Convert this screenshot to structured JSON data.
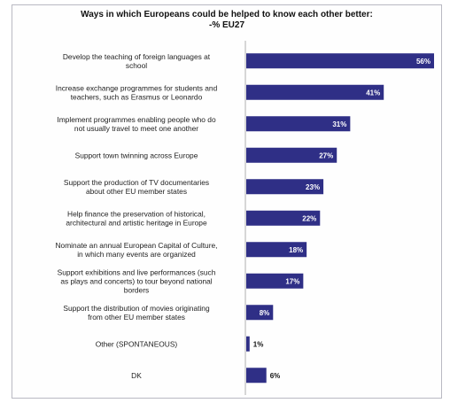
{
  "chart_data": {
    "type": "bar",
    "orientation": "horizontal",
    "title": "Ways in which Europeans could be helped to know each other better:",
    "subtitle": "-% EU27",
    "value_suffix": "%",
    "xlim": [
      0,
      56
    ],
    "grid": false,
    "legend": "none",
    "bar_color": "#2f2f86",
    "categories": [
      [
        "Develop the teaching of foreign languages at",
        "school"
      ],
      [
        "Increase exchange programmes for students and",
        "teachers, such as Erasmus or Leonardo"
      ],
      [
        "Implement programmes enabling people who do",
        "not usually travel to meet one another"
      ],
      [
        "Support town twinning across Europe"
      ],
      [
        "Support the production of TV documentaries",
        "about other EU member states"
      ],
      [
        "Help finance the preservation of historical,",
        "architectural and artistic heritage in Europe"
      ],
      [
        "Nominate an annual European Capital of Culture,",
        "in which many events are organized"
      ],
      [
        "Support exhibitions and live performances (such",
        "as plays and concerts) to tour beyond national",
        "borders"
      ],
      [
        "Support the distribution of movies originating",
        "from other EU member states"
      ],
      [
        "Other (SPONTANEOUS)"
      ],
      [
        "DK"
      ]
    ],
    "values": [
      56,
      41,
      31,
      27,
      23,
      22,
      18,
      17,
      8,
      1,
      6
    ]
  }
}
